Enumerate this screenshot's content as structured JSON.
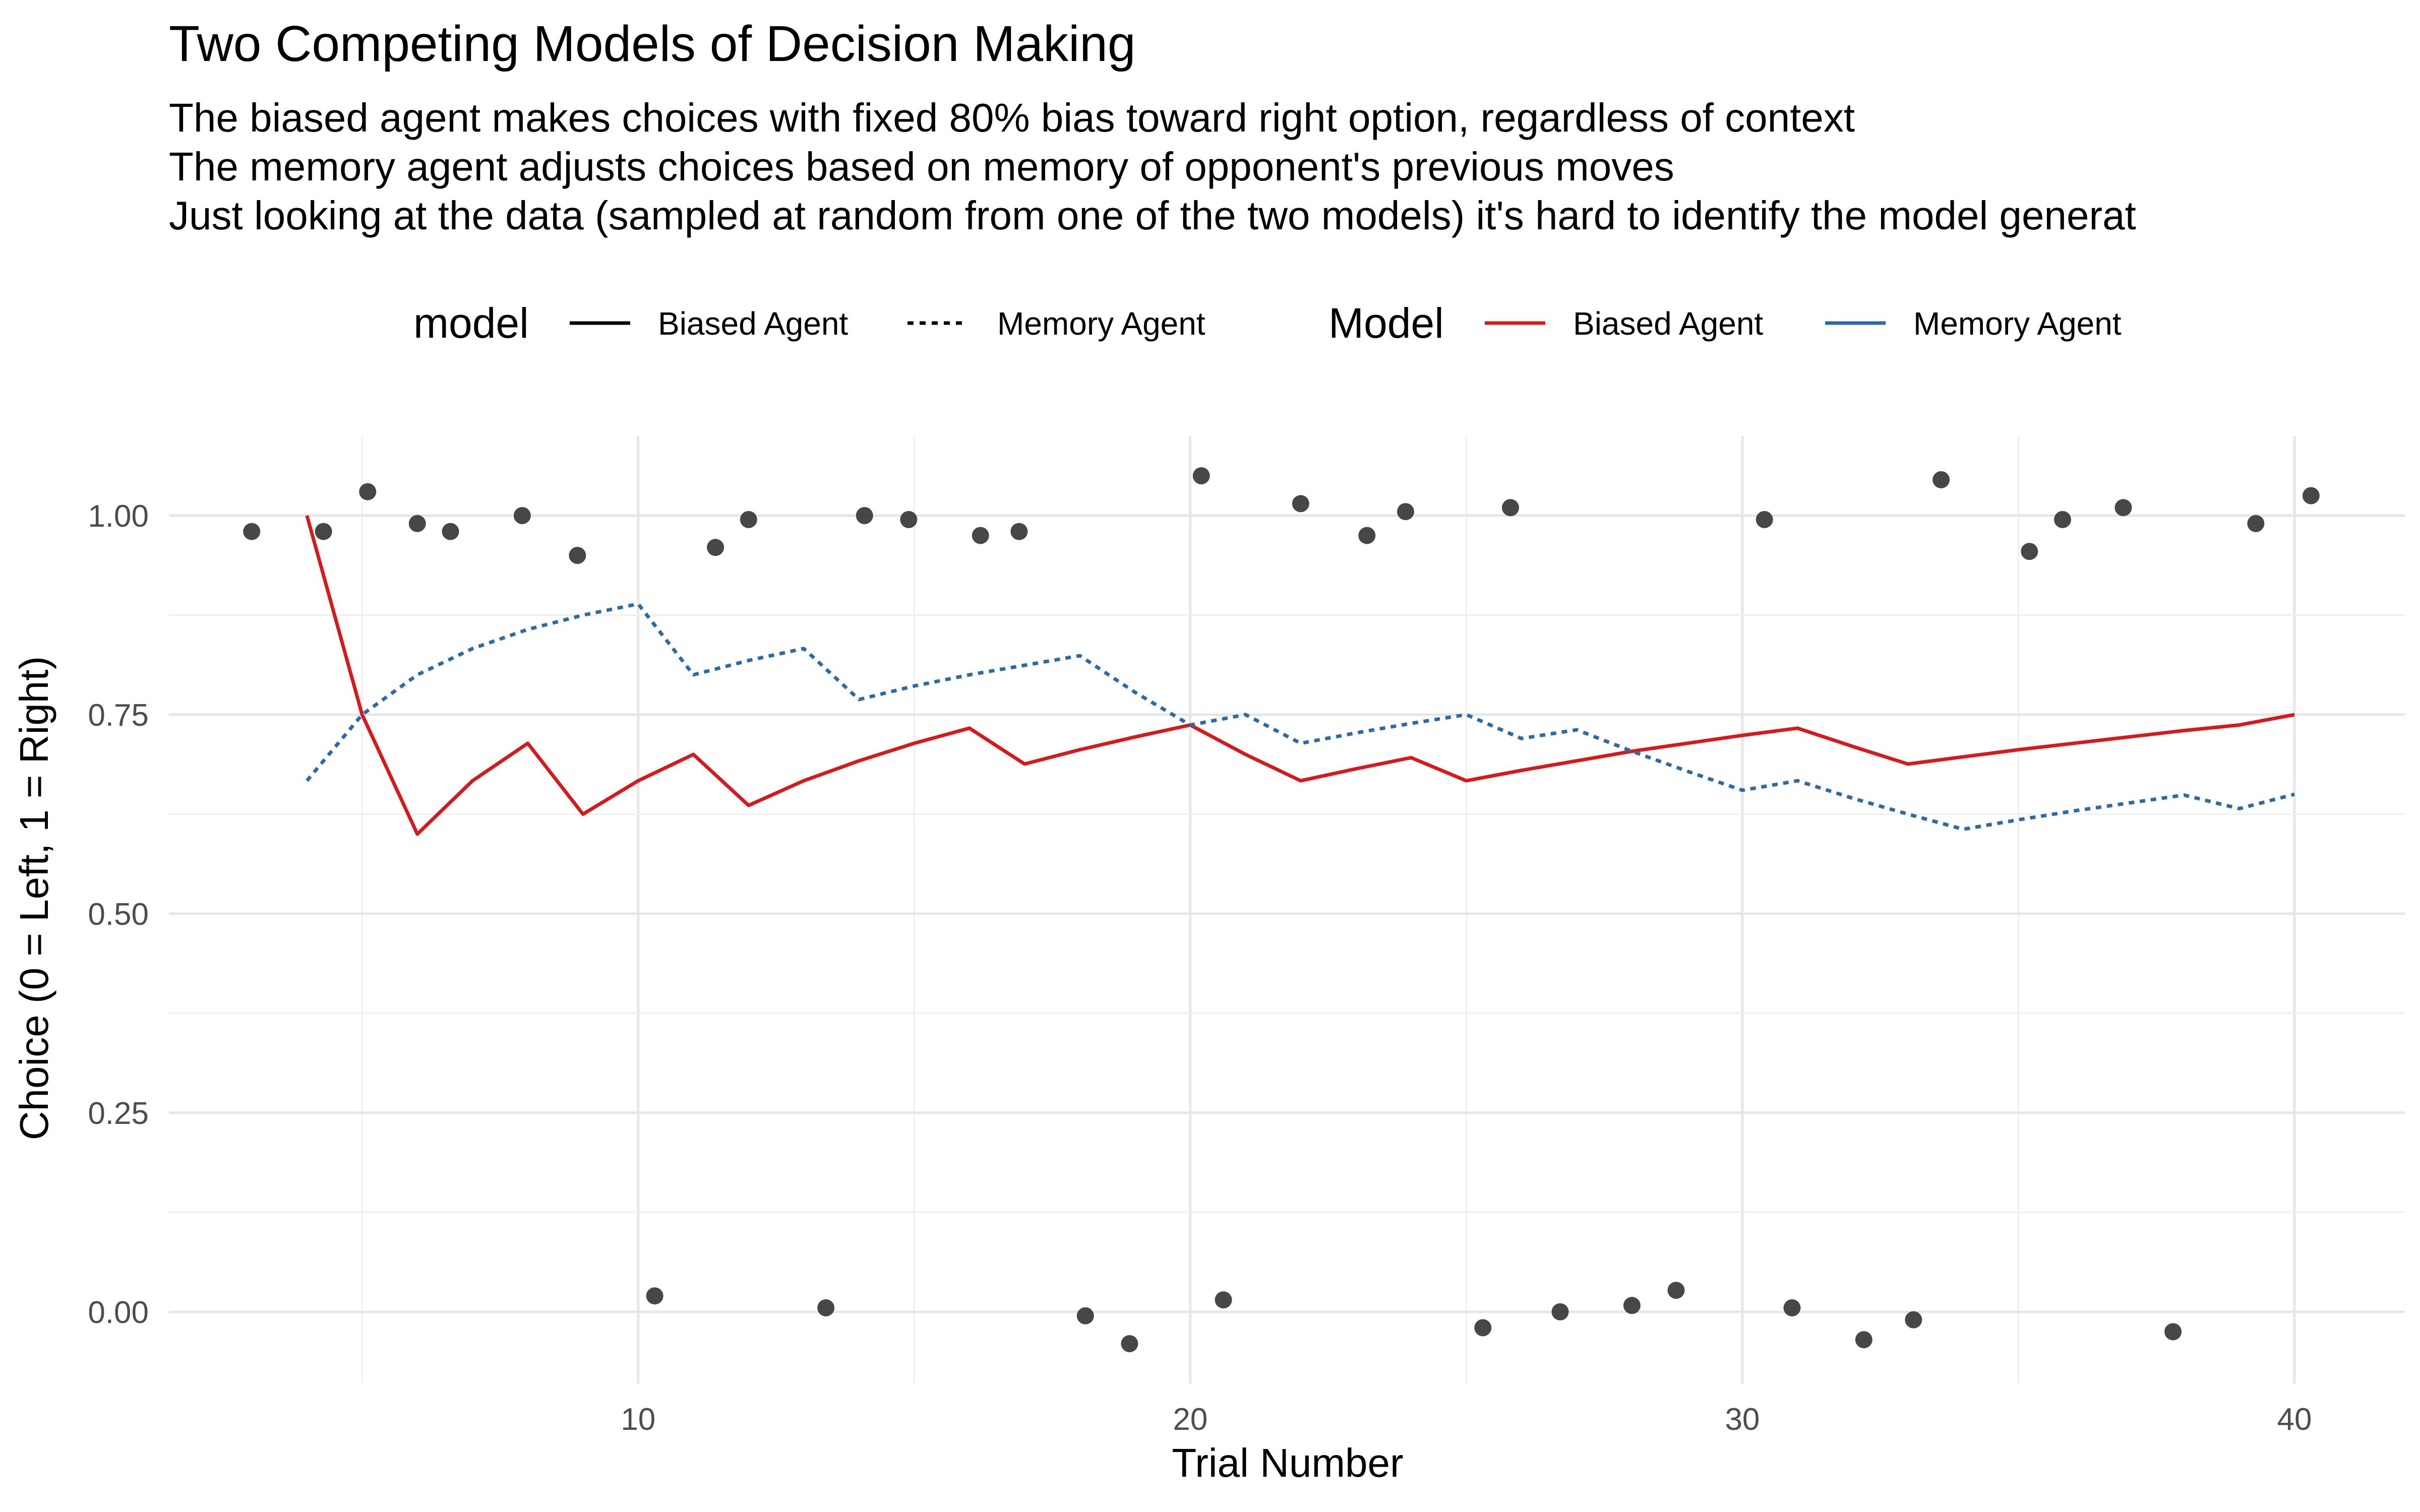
{
  "title": "Two Competing Models of Decision Making",
  "subtitle_lines": [
    "The biased agent makes choices with fixed 80% bias toward right option, regardless of context",
    "The memory agent adjusts choices based on memory of opponent's previous moves",
    "Just looking at the data (sampled at random from one of the two models) it's hard to identify the model generat"
  ],
  "legends": {
    "linetype": {
      "title": "model",
      "items": [
        {
          "label": "Biased Agent",
          "dash": "solid"
        },
        {
          "label": "Memory Agent",
          "dash": "dotted"
        }
      ]
    },
    "colour": {
      "title": "Model",
      "items": [
        {
          "label": "Biased Agent",
          "color": "#d7191c"
        },
        {
          "label": "Memory Agent",
          "color": "#2b6aa8"
        }
      ]
    }
  },
  "chart_data": {
    "type": "line",
    "xlabel": "Trial Number",
    "ylabel": "Choice (0 = Left, 1 = Right)",
    "xlim": [
      1.5,
      42
    ],
    "ylim": [
      -0.09,
      1.1
    ],
    "xticks": [
      10,
      20,
      30,
      40
    ],
    "yticks": [
      0.0,
      0.25,
      0.5,
      0.75,
      1.0
    ],
    "ytick_labels": [
      "0.00",
      "0.25",
      "0.50",
      "0.75",
      "1.00"
    ],
    "grid": true,
    "legend_position": "top",
    "series": [
      {
        "name": "Biased Agent",
        "color": "#d7191c",
        "dash": "solid",
        "x": [
          4,
          5,
          6,
          7,
          8,
          9,
          10,
          11,
          12,
          13,
          14,
          15,
          16,
          17,
          18,
          19,
          20,
          21,
          22,
          23,
          24,
          25,
          26,
          27,
          28,
          29,
          30,
          31,
          32,
          33,
          34,
          35,
          36,
          37,
          38,
          39,
          40
        ],
        "y": [
          1.0,
          0.75,
          0.6,
          0.667,
          0.714,
          0.625,
          0.667,
          0.7,
          0.636,
          0.667,
          0.692,
          0.714,
          0.733,
          0.688,
          0.706,
          0.722,
          0.737,
          0.7,
          0.667,
          0.682,
          0.696,
          0.667,
          0.68,
          0.692,
          0.704,
          0.714,
          0.724,
          0.733,
          0.71,
          0.688,
          0.697,
          0.706,
          0.714,
          0.722,
          0.73,
          0.737,
          0.75
        ]
      },
      {
        "name": "Memory Agent",
        "color": "#2b6aa8",
        "dash": "dotted",
        "x": [
          4,
          5,
          6,
          7,
          8,
          9,
          10,
          11,
          12,
          13,
          14,
          15,
          16,
          17,
          18,
          19,
          20,
          21,
          22,
          23,
          24,
          25,
          26,
          27,
          28,
          29,
          30,
          31,
          32,
          33,
          34,
          35,
          36,
          37,
          38,
          39,
          40
        ],
        "y": [
          0.667,
          0.75,
          0.8,
          0.833,
          0.857,
          0.875,
          0.889,
          0.8,
          0.818,
          0.833,
          0.769,
          0.786,
          0.8,
          0.812,
          0.824,
          0.778,
          0.737,
          0.75,
          0.714,
          0.727,
          0.739,
          0.75,
          0.72,
          0.731,
          0.704,
          0.679,
          0.655,
          0.667,
          0.645,
          0.625,
          0.606,
          0.618,
          0.629,
          0.639,
          0.649,
          0.632,
          0.65
        ]
      }
    ],
    "points": {
      "color": "#333333",
      "x": [
        3.0,
        4.3,
        5.1,
        6.0,
        6.6,
        7.9,
        8.9,
        10.3,
        11.4,
        12.0,
        13.4,
        14.1,
        14.9,
        16.2,
        16.9,
        18.1,
        18.9,
        20.2,
        20.6,
        22.0,
        23.2,
        23.9,
        25.3,
        25.8,
        26.7,
        28.0,
        28.8,
        30.4,
        30.9,
        32.2,
        33.1,
        33.6,
        35.2,
        35.8,
        36.9,
        37.8,
        39.3,
        40.3
      ],
      "y": [
        0.98,
        0.98,
        1.03,
        0.99,
        0.98,
        1.0,
        0.95,
        0.02,
        0.96,
        0.995,
        0.005,
        1.0,
        0.995,
        0.975,
        0.98,
        -0.005,
        -0.04,
        1.05,
        0.015,
        1.015,
        0.975,
        1.005,
        -0.02,
        1.01,
        0.0,
        0.008,
        0.027,
        0.995,
        0.005,
        -0.035,
        -0.01,
        1.045,
        0.955,
        0.995,
        1.01,
        -0.025,
        0.99,
        1.025
      ]
    }
  }
}
